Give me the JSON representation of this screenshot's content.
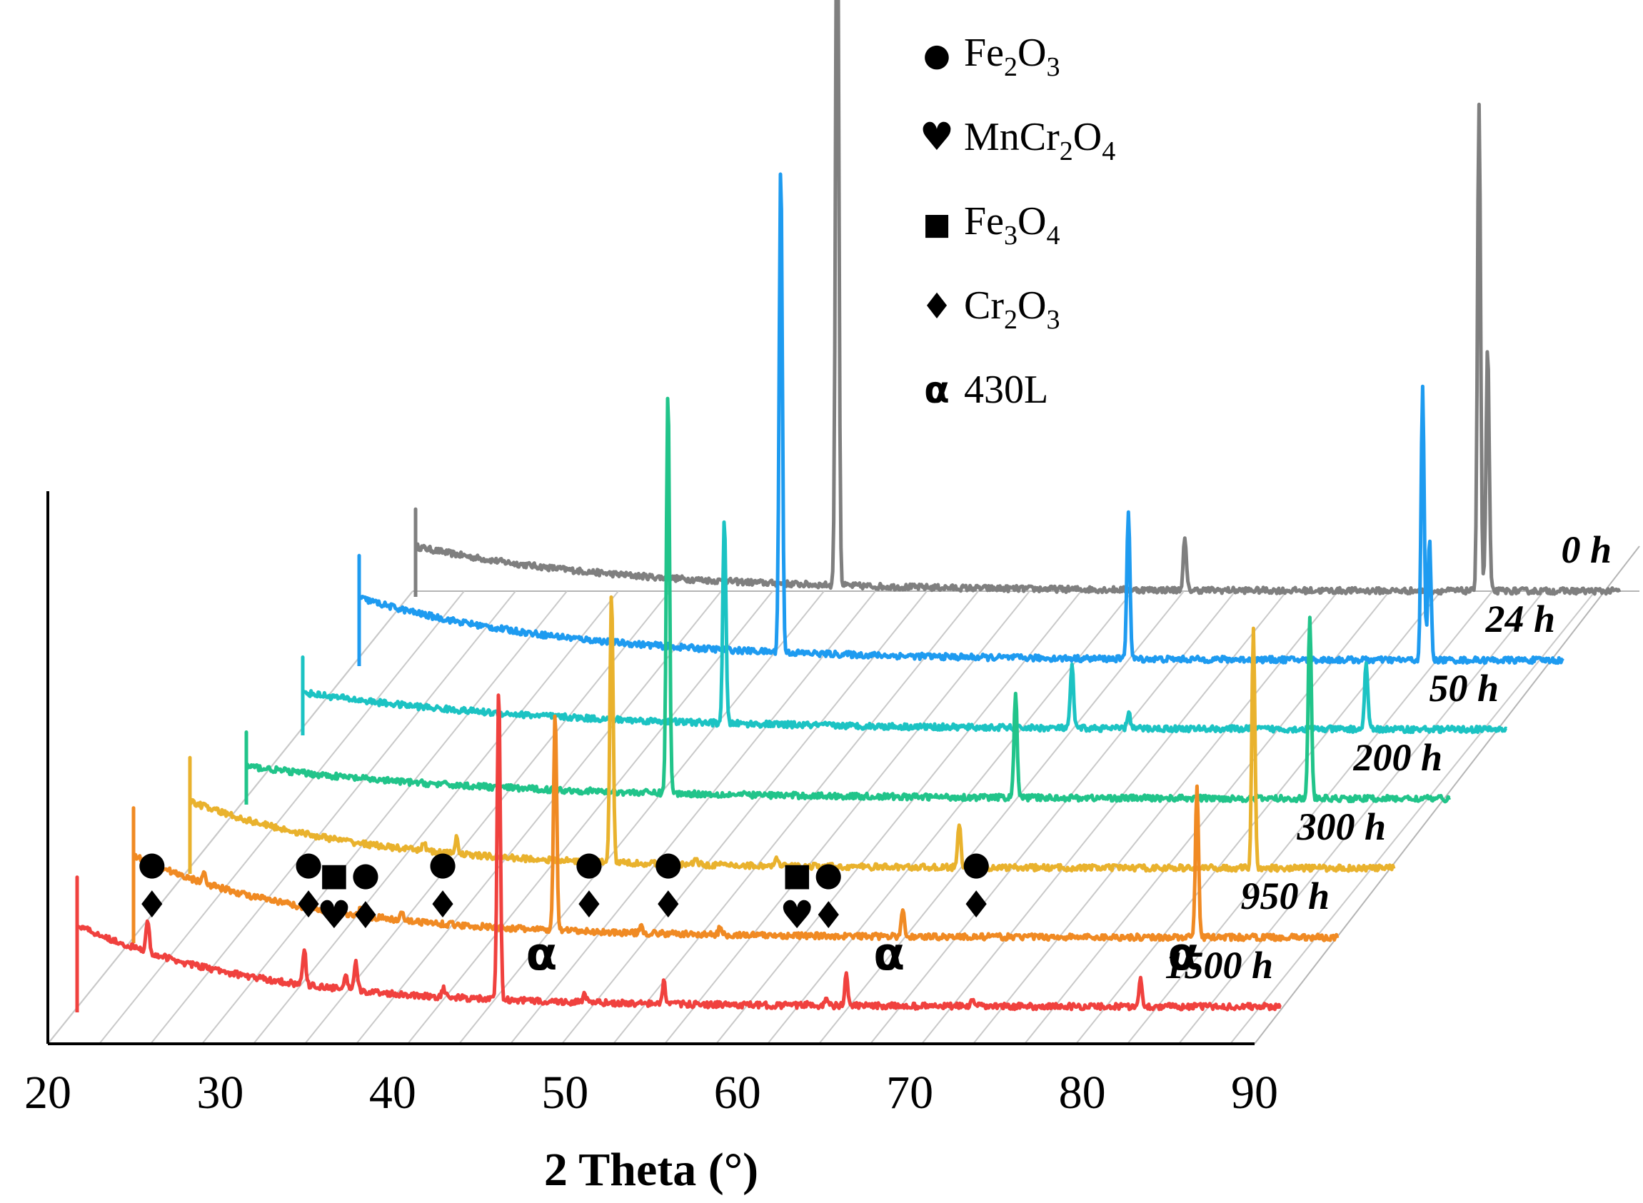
{
  "chart_data": {
    "type": "line",
    "style": "3d-stacked",
    "title": "",
    "xlabel": "2 Theta (°)",
    "ylabel": "",
    "xlim": [
      20,
      90
    ],
    "x_ticks": [
      "20",
      "30",
      "40",
      "50",
      "60",
      "70",
      "80",
      "90"
    ],
    "grid": true,
    "series": [
      {
        "name": "0 h",
        "label": "0 h",
        "color": "#7f7f7f",
        "baseline": {
          "start": 0.3,
          "end": 0.0,
          "decay": 12
        },
        "peaks": [
          {
            "x": 44.5,
            "h": 11.5
          },
          {
            "x": 64.7,
            "h": 0.75
          },
          {
            "x": 81.8,
            "h": 7.2
          },
          {
            "x": 82.3,
            "h": 3.6
          }
        ]
      },
      {
        "name": "24 h",
        "label": "24 h",
        "color": "#1e9bf0",
        "baseline": {
          "start": 0.42,
          "end": 0.0,
          "decay": 12
        },
        "peaks": [
          {
            "x": 44.5,
            "h": 7.2
          },
          {
            "x": 64.7,
            "h": 2.2
          },
          {
            "x": 81.8,
            "h": 4.0
          },
          {
            "x": 82.2,
            "h": 1.8
          }
        ]
      },
      {
        "name": "50 h",
        "label": "50 h",
        "color": "#1cc3c3",
        "baseline": {
          "start": 0.25,
          "end": 0.0,
          "decay": 14
        },
        "peaks": [
          {
            "x": 44.5,
            "h": 3.0
          },
          {
            "x": 64.7,
            "h": 0.95
          },
          {
            "x": 68.0,
            "h": 0.25
          },
          {
            "x": 81.8,
            "h": 1.0
          }
        ]
      },
      {
        "name": "200 h",
        "label": "200 h",
        "color": "#21c48a",
        "baseline": {
          "start": 0.22,
          "end": 0.0,
          "decay": 14
        },
        "peaks": [
          {
            "x": 44.5,
            "h": 6.0
          },
          {
            "x": 64.7,
            "h": 1.55
          },
          {
            "x": 81.8,
            "h": 2.7
          }
        ]
      },
      {
        "name": "300 h",
        "label": "300 h",
        "color": "#e9b22d",
        "baseline": {
          "start": 0.45,
          "end": 0.0,
          "decay": 10
        },
        "peaks": [
          {
            "x": 33.6,
            "h": 0.15
          },
          {
            "x": 35.5,
            "h": 0.25
          },
          {
            "x": 44.5,
            "h": 4.0
          },
          {
            "x": 49.4,
            "h": 0.12
          },
          {
            "x": 54.1,
            "h": 0.1
          },
          {
            "x": 64.7,
            "h": 0.65
          },
          {
            "x": 81.8,
            "h": 3.5
          }
        ]
      },
      {
        "name": "950 h",
        "label": "950 h",
        "color": "#f08a23",
        "baseline": {
          "start": 0.55,
          "end": 0.0,
          "decay": 10
        },
        "peaks": [
          {
            "x": 24.1,
            "h": 0.2
          },
          {
            "x": 33.2,
            "h": 0.1
          },
          {
            "x": 35.6,
            "h": 0.15
          },
          {
            "x": 44.5,
            "h": 3.25
          },
          {
            "x": 49.5,
            "h": 0.12
          },
          {
            "x": 54.1,
            "h": 0.12
          },
          {
            "x": 64.7,
            "h": 0.38
          },
          {
            "x": 81.8,
            "h": 2.2
          }
        ]
      },
      {
        "name": "1500 h",
        "label": "1500 h",
        "color": "#f0413e",
        "baseline": {
          "start": 0.55,
          "end": 0.0,
          "decay": 10
        },
        "peaks": [
          {
            "x": 24.1,
            "h": 0.5
          },
          {
            "x": 33.2,
            "h": 0.55
          },
          {
            "x": 35.6,
            "h": 0.22
          },
          {
            "x": 36.2,
            "h": 0.4
          },
          {
            "x": 41.3,
            "h": 0.12
          },
          {
            "x": 44.5,
            "h": 4.6
          },
          {
            "x": 49.5,
            "h": 0.12
          },
          {
            "x": 54.1,
            "h": 0.32
          },
          {
            "x": 62.5,
            "h": 0.05
          },
          {
            "x": 63.5,
            "h": 0.1
          },
          {
            "x": 64.7,
            "h": 0.45
          },
          {
            "x": 72.0,
            "h": 0.08
          },
          {
            "x": 81.8,
            "h": 0.4
          }
        ]
      }
    ],
    "legend": [
      {
        "symbol": "●",
        "label": "Fe",
        "sub": "2",
        "label2": "O",
        "sub2": "3"
      },
      {
        "symbol": "♥",
        "label": "MnCr",
        "sub": "2",
        "label2": "O",
        "sub2": "4"
      },
      {
        "symbol": "■",
        "label": "Fe",
        "sub": "3",
        "label2": "O",
        "sub2": "4"
      },
      {
        "symbol": "♦",
        "label": "Cr",
        "sub": "2",
        "label2": "O",
        "sub2": "3"
      },
      {
        "symbol": "α",
        "label": "430L",
        "sub": "",
        "label2": "",
        "sub2": ""
      }
    ],
    "phase_annotations": [
      {
        "x": 24.1,
        "symbols": [
          "●",
          "♦"
        ]
      },
      {
        "x": 33.2,
        "symbols": [
          "●",
          "♦"
        ]
      },
      {
        "x": 35.6,
        "symbols": [
          "■",
          "♥",
          "●",
          "♦"
        ]
      },
      {
        "x": 41.0,
        "symbols": [
          "●",
          "♦"
        ]
      },
      {
        "x": 44.5,
        "symbols": [
          "α"
        ]
      },
      {
        "x": 49.5,
        "symbols": [
          "●",
          "♦"
        ]
      },
      {
        "x": 54.1,
        "symbols": [
          "●",
          "♦"
        ]
      },
      {
        "x": 62.5,
        "symbols": [
          "■",
          "♥",
          "●",
          "♦"
        ]
      },
      {
        "x": 64.7,
        "symbols": [
          "α"
        ]
      },
      {
        "x": 72.0,
        "symbols": [
          "●",
          "♦"
        ]
      },
      {
        "x": 81.8,
        "symbols": [
          "α"
        ]
      }
    ]
  }
}
